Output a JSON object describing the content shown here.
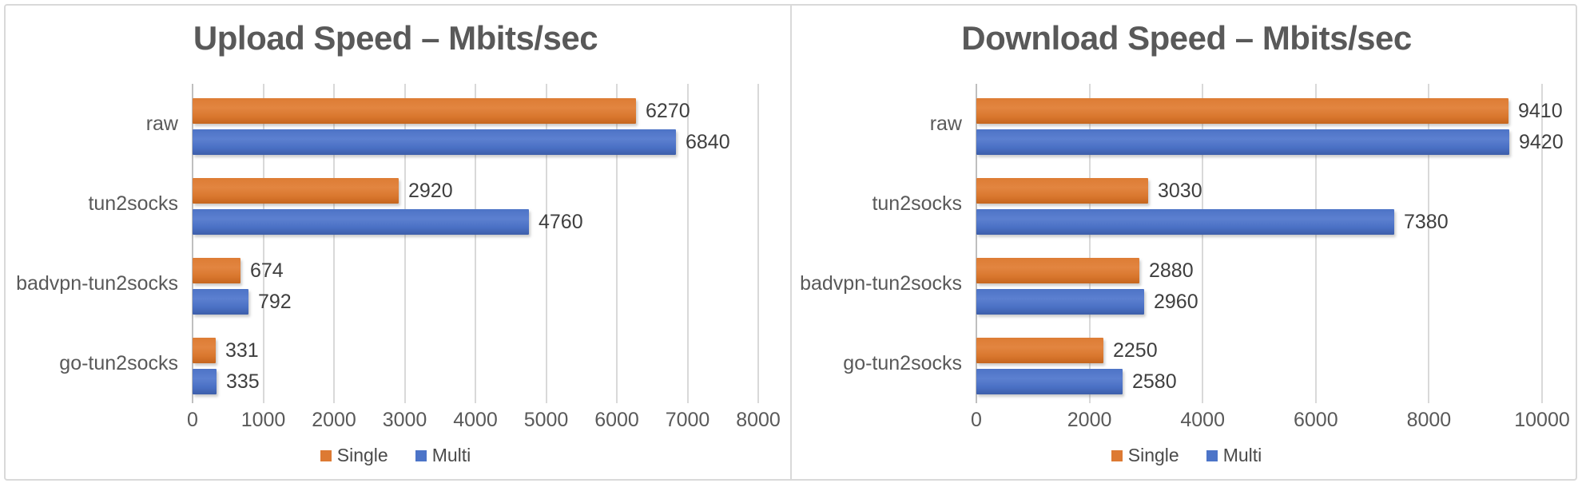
{
  "ui": {
    "background": "#ffffff",
    "frame_border_color": "#d9d9d9",
    "gridline_color": "#d9d9d9",
    "axis_line_color": "#bfbfbf",
    "title_color": "#595959",
    "label_color": "#595959",
    "value_label_color": "#3f3f3f",
    "single_color": "#dd7a33",
    "multi_color": "#4c74c8"
  },
  "chart_data": [
    {
      "type": "bar",
      "orientation": "horizontal",
      "title": "Upload Speed – Mbits/sec",
      "categories": [
        "raw",
        "tun2socks",
        "badvpn-tun2socks",
        "go-tun2socks"
      ],
      "series": [
        {
          "name": "Single",
          "color": "#dd7a33",
          "values": [
            6270,
            2920,
            674,
            331
          ]
        },
        {
          "name": "Multi",
          "color": "#4c74c8",
          "values": [
            6840,
            4760,
            792,
            335
          ]
        }
      ],
      "value_labels": [
        "6270",
        "2920",
        "674",
        "331",
        "6840",
        "4760",
        "792",
        "335"
      ],
      "xlim": [
        0,
        8000
      ],
      "tick_step": 1000,
      "tick_labels": [
        "0",
        "1000",
        "2000",
        "3000",
        "4000",
        "5000",
        "6000",
        "7000",
        "8000"
      ],
      "grid": true,
      "legend_position": "bottom",
      "legend_labels": [
        "Single",
        "Multi"
      ]
    },
    {
      "type": "bar",
      "orientation": "horizontal",
      "title": "Download Speed – Mbits/sec",
      "categories": [
        "raw",
        "tun2socks",
        "badvpn-tun2socks",
        "go-tun2socks"
      ],
      "series": [
        {
          "name": "Single",
          "color": "#dd7a33",
          "values": [
            9410,
            3030,
            2880,
            2250
          ]
        },
        {
          "name": "Multi",
          "color": "#4c74c8",
          "values": [
            9420,
            7380,
            2960,
            2580
          ]
        }
      ],
      "value_labels": [
        "9410",
        "3030",
        "2880",
        "2250",
        "9420",
        "7380",
        "2960",
        "2580"
      ],
      "xlim": [
        0,
        10000
      ],
      "tick_step": 2000,
      "tick_labels": [
        "0",
        "2000",
        "4000",
        "6000",
        "8000",
        "10000"
      ],
      "grid": true,
      "legend_position": "bottom",
      "legend_labels": [
        "Single",
        "Multi"
      ]
    }
  ]
}
